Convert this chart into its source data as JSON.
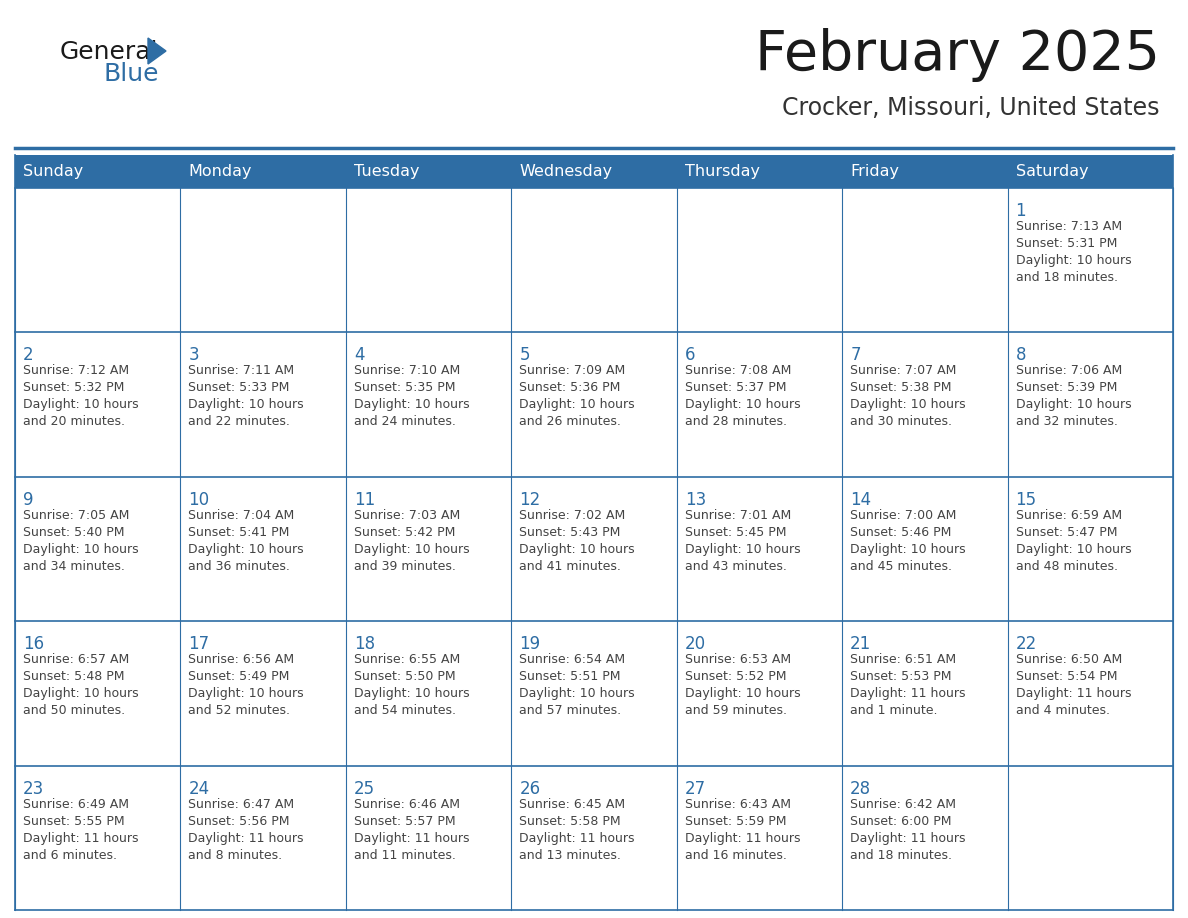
{
  "title": "February 2025",
  "subtitle": "Crocker, Missouri, United States",
  "days_of_week": [
    "Sunday",
    "Monday",
    "Tuesday",
    "Wednesday",
    "Thursday",
    "Friday",
    "Saturday"
  ],
  "header_bg_color": "#2E6DA4",
  "header_text_color": "#FFFFFF",
  "cell_bg_color": "#FFFFFF",
  "border_color": "#2E6DA4",
  "day_number_color": "#2E6DA4",
  "info_text_color": "#444444",
  "title_color": "#1a1a1a",
  "subtitle_color": "#333333",
  "logo_general_color": "#1a1a1a",
  "logo_blue_color": "#2E6DA4",
  "calendar_data": [
    {
      "day": 1,
      "col": 6,
      "row": 0,
      "sunrise": "7:13 AM",
      "sunset": "5:31 PM",
      "daylight": "10 hours and 18 minutes."
    },
    {
      "day": 2,
      "col": 0,
      "row": 1,
      "sunrise": "7:12 AM",
      "sunset": "5:32 PM",
      "daylight": "10 hours and 20 minutes."
    },
    {
      "day": 3,
      "col": 1,
      "row": 1,
      "sunrise": "7:11 AM",
      "sunset": "5:33 PM",
      "daylight": "10 hours and 22 minutes."
    },
    {
      "day": 4,
      "col": 2,
      "row": 1,
      "sunrise": "7:10 AM",
      "sunset": "5:35 PM",
      "daylight": "10 hours and 24 minutes."
    },
    {
      "day": 5,
      "col": 3,
      "row": 1,
      "sunrise": "7:09 AM",
      "sunset": "5:36 PM",
      "daylight": "10 hours and 26 minutes."
    },
    {
      "day": 6,
      "col": 4,
      "row": 1,
      "sunrise": "7:08 AM",
      "sunset": "5:37 PM",
      "daylight": "10 hours and 28 minutes."
    },
    {
      "day": 7,
      "col": 5,
      "row": 1,
      "sunrise": "7:07 AM",
      "sunset": "5:38 PM",
      "daylight": "10 hours and 30 minutes."
    },
    {
      "day": 8,
      "col": 6,
      "row": 1,
      "sunrise": "7:06 AM",
      "sunset": "5:39 PM",
      "daylight": "10 hours and 32 minutes."
    },
    {
      "day": 9,
      "col": 0,
      "row": 2,
      "sunrise": "7:05 AM",
      "sunset": "5:40 PM",
      "daylight": "10 hours and 34 minutes."
    },
    {
      "day": 10,
      "col": 1,
      "row": 2,
      "sunrise": "7:04 AM",
      "sunset": "5:41 PM",
      "daylight": "10 hours and 36 minutes."
    },
    {
      "day": 11,
      "col": 2,
      "row": 2,
      "sunrise": "7:03 AM",
      "sunset": "5:42 PM",
      "daylight": "10 hours and 39 minutes."
    },
    {
      "day": 12,
      "col": 3,
      "row": 2,
      "sunrise": "7:02 AM",
      "sunset": "5:43 PM",
      "daylight": "10 hours and 41 minutes."
    },
    {
      "day": 13,
      "col": 4,
      "row": 2,
      "sunrise": "7:01 AM",
      "sunset": "5:45 PM",
      "daylight": "10 hours and 43 minutes."
    },
    {
      "day": 14,
      "col": 5,
      "row": 2,
      "sunrise": "7:00 AM",
      "sunset": "5:46 PM",
      "daylight": "10 hours and 45 minutes."
    },
    {
      "day": 15,
      "col": 6,
      "row": 2,
      "sunrise": "6:59 AM",
      "sunset": "5:47 PM",
      "daylight": "10 hours and 48 minutes."
    },
    {
      "day": 16,
      "col": 0,
      "row": 3,
      "sunrise": "6:57 AM",
      "sunset": "5:48 PM",
      "daylight": "10 hours and 50 minutes."
    },
    {
      "day": 17,
      "col": 1,
      "row": 3,
      "sunrise": "6:56 AM",
      "sunset": "5:49 PM",
      "daylight": "10 hours and 52 minutes."
    },
    {
      "day": 18,
      "col": 2,
      "row": 3,
      "sunrise": "6:55 AM",
      "sunset": "5:50 PM",
      "daylight": "10 hours and 54 minutes."
    },
    {
      "day": 19,
      "col": 3,
      "row": 3,
      "sunrise": "6:54 AM",
      "sunset": "5:51 PM",
      "daylight": "10 hours and 57 minutes."
    },
    {
      "day": 20,
      "col": 4,
      "row": 3,
      "sunrise": "6:53 AM",
      "sunset": "5:52 PM",
      "daylight": "10 hours and 59 minutes."
    },
    {
      "day": 21,
      "col": 5,
      "row": 3,
      "sunrise": "6:51 AM",
      "sunset": "5:53 PM",
      "daylight": "11 hours and 1 minute."
    },
    {
      "day": 22,
      "col": 6,
      "row": 3,
      "sunrise": "6:50 AM",
      "sunset": "5:54 PM",
      "daylight": "11 hours and 4 minutes."
    },
    {
      "day": 23,
      "col": 0,
      "row": 4,
      "sunrise": "6:49 AM",
      "sunset": "5:55 PM",
      "daylight": "11 hours and 6 minutes."
    },
    {
      "day": 24,
      "col": 1,
      "row": 4,
      "sunrise": "6:47 AM",
      "sunset": "5:56 PM",
      "daylight": "11 hours and 8 minutes."
    },
    {
      "day": 25,
      "col": 2,
      "row": 4,
      "sunrise": "6:46 AM",
      "sunset": "5:57 PM",
      "daylight": "11 hours and 11 minutes."
    },
    {
      "day": 26,
      "col": 3,
      "row": 4,
      "sunrise": "6:45 AM",
      "sunset": "5:58 PM",
      "daylight": "11 hours and 13 minutes."
    },
    {
      "day": 27,
      "col": 4,
      "row": 4,
      "sunrise": "6:43 AM",
      "sunset": "5:59 PM",
      "daylight": "11 hours and 16 minutes."
    },
    {
      "day": 28,
      "col": 5,
      "row": 4,
      "sunrise": "6:42 AM",
      "sunset": "6:00 PM",
      "daylight": "11 hours and 18 minutes."
    }
  ]
}
